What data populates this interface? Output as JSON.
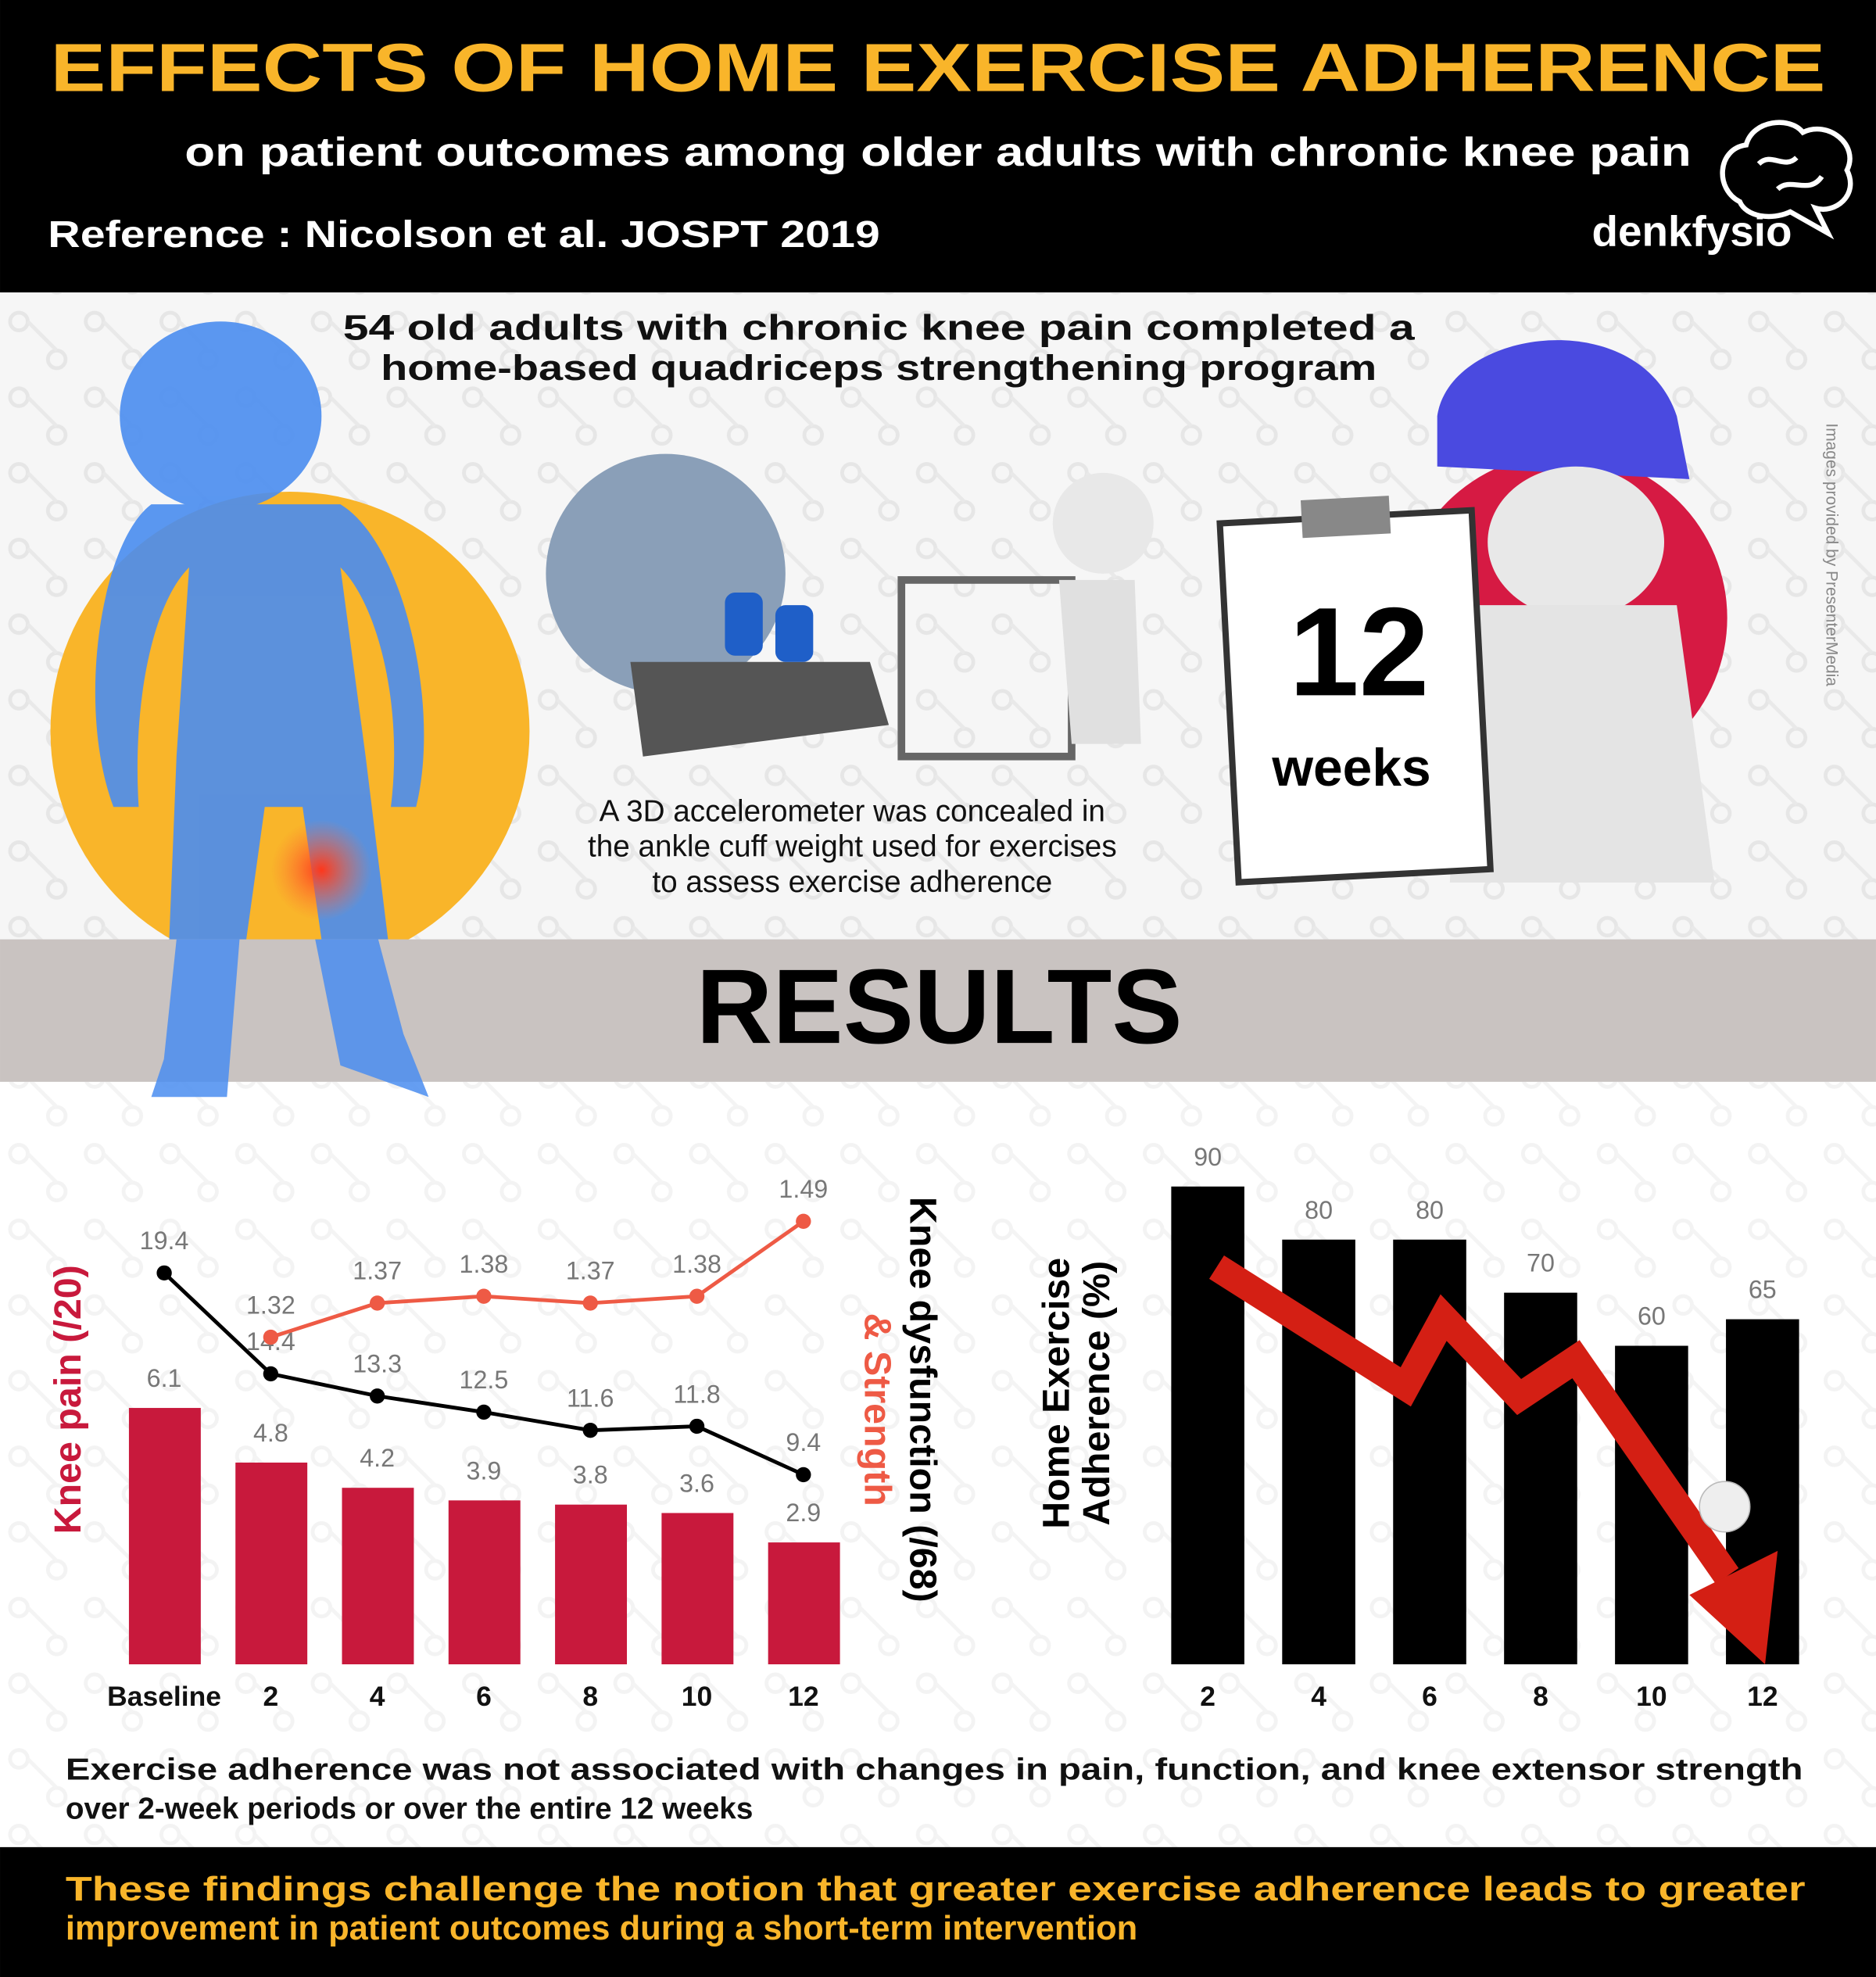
{
  "header": {
    "title": "EFFECTS OF HOME EXERCISE ADHERENCE",
    "subtitle": "on patient outcomes among older adults with chronic knee pain",
    "reference": "Reference : Nicolson et al. JOSPT 2019",
    "logo": "denkfysio"
  },
  "intro": {
    "lines": [
      "54 old adults with chronic knee pain completed a",
      "home-based quadriceps strengthening program"
    ],
    "duration_number": "12",
    "duration_unit": "weeks",
    "method": [
      "A 3D accelerometer was concealed in",
      "the ankle cuff weight used for exercises",
      "to assess exercise adherence"
    ],
    "credit": "Images provided by PresenterMedia"
  },
  "section_title": "RESULTS",
  "chart_data": [
    {
      "type": "combo",
      "categories": [
        "Baseline",
        "2",
        "4",
        "6",
        "8",
        "10",
        "12"
      ],
      "ylim": [
        0,
        12
      ],
      "y2lim": [
        0,
        25
      ],
      "y3lim": [
        0.84,
        1.58
      ],
      "series": [
        {
          "name": "Knee pain (/20)",
          "type": "bar",
          "axis": "y",
          "color": "#c8193c",
          "values": [
            6.1,
            4.8,
            4.2,
            3.9,
            3.8,
            3.6,
            2.9
          ]
        },
        {
          "name": "Knee dysfunction (/68)",
          "type": "line",
          "axis": "y2",
          "color": "#000000",
          "values": [
            19.4,
            14.4,
            13.3,
            12.5,
            11.6,
            11.8,
            9.4
          ]
        },
        {
          "name": "& Strength",
          "type": "line",
          "axis": "y3",
          "color": "#ee5a45",
          "values": [
            null,
            1.32,
            1.37,
            1.38,
            1.37,
            1.38,
            1.49
          ]
        }
      ]
    },
    {
      "type": "bar",
      "ylabel": [
        "Home Exercise",
        "Adherence (%)"
      ],
      "categories": [
        "2",
        "4",
        "6",
        "8",
        "10",
        "12"
      ],
      "values": [
        90,
        80,
        80,
        70,
        60,
        65
      ],
      "color": "#000000",
      "ylim": [
        0,
        95
      ]
    }
  ],
  "findings": [
    "Exercise adherence was not associated with changes in pain, function, and knee extensor strength",
    "over 2-week periods or over the entire 12 weeks"
  ],
  "conclusion": [
    "These findings challenge the notion that greater exercise adherence leads to greater",
    "improvement in patient outcomes during a short-term intervention"
  ]
}
